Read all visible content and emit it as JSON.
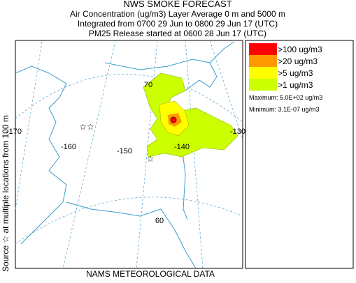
{
  "header": {
    "title": "NWS SMOKE FORECAST",
    "lines": [
      "Air Concentration (ug/m3) Layer Average    0 m and  5000 m",
      "Integrated from 0700 29 Jun to 0800 29 Jun 17 (UTC)",
      "PM25 Release started at 0600 28 Jun 17 (UTC)"
    ]
  },
  "legend": {
    "items": [
      {
        "label": ">100 ug/m3",
        "color": "#ff0000"
      },
      {
        "label": ">20 ug/m3",
        "color": "#ff9900"
      },
      {
        "label": ">5 ug/m3",
        "color": "#ffff00"
      },
      {
        "label": ">1 ug/m3",
        "color": "#ccff00"
      }
    ],
    "maximum": "Maximum: 5.0E+02 ug/m3",
    "minimum": "Minimum: 3.1E-07 ug/m3"
  },
  "side_label": "Source ☆ at multiple locations from  100 m",
  "map": {
    "labels": [
      "-170",
      "-160",
      "-150",
      "-140",
      "-130",
      "70",
      "60"
    ]
  },
  "footer": "NAMS METEOROLOGICAL DATA"
}
